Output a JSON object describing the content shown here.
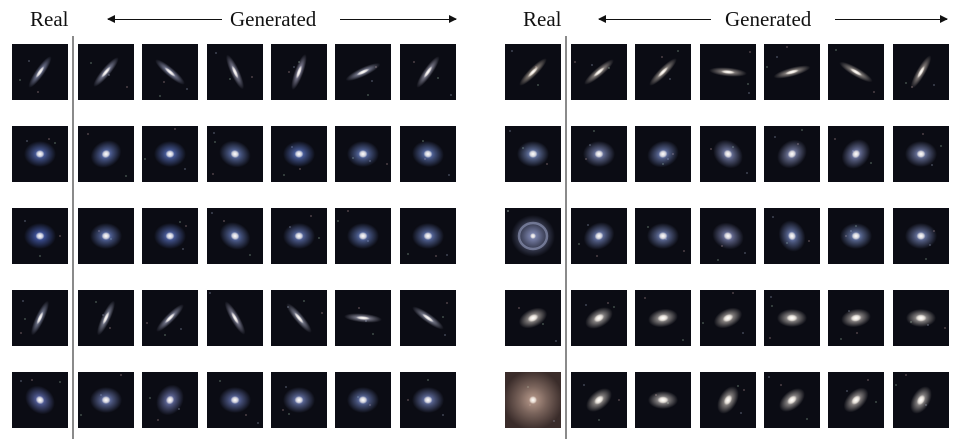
{
  "figure": {
    "real_label": "Real",
    "generated_label": "Generated"
  },
  "panels": [
    {
      "rows": [
        {
          "real": {
            "type": "edge",
            "angle": -55,
            "tint": "#b8c0e8"
          },
          "generated": [
            {
              "type": "edge",
              "angle": -50,
              "tint": "#c8ccec"
            },
            {
              "type": "edge",
              "angle": 40,
              "tint": "#c0c6ea"
            },
            {
              "type": "edge",
              "angle": 65,
              "tint": "#c8c8e4"
            },
            {
              "type": "edge",
              "angle": -70,
              "tint": "#d0ccea"
            },
            {
              "type": "edge",
              "angle": -25,
              "tint": "#c8cce8"
            },
            {
              "type": "edge",
              "angle": -55,
              "tint": "#d2d0e6"
            }
          ]
        },
        {
          "real": {
            "type": "spiral",
            "angle": 0,
            "tint": "#6a86e0"
          },
          "generated": [
            {
              "type": "spiral",
              "angle": -30,
              "tint": "#7a94e6"
            },
            {
              "type": "spiral",
              "angle": 0,
              "tint": "#6a88e4"
            },
            {
              "type": "spiral",
              "angle": 20,
              "tint": "#7e98e2"
            },
            {
              "type": "spiral",
              "angle": 0,
              "tint": "#6c8ae6"
            },
            {
              "type": "spiral",
              "angle": 0,
              "tint": "#7a96e4"
            },
            {
              "type": "spiral",
              "angle": 10,
              "tint": "#7894e2"
            }
          ]
        },
        {
          "real": {
            "type": "spiral",
            "angle": 0,
            "tint": "#5a78e0"
          },
          "generated": [
            {
              "type": "spiral",
              "angle": 0,
              "tint": "#7a94e4"
            },
            {
              "type": "spiral",
              "angle": 0,
              "tint": "#6a86e2"
            },
            {
              "type": "spiral",
              "angle": 30,
              "tint": "#7c96e2"
            },
            {
              "type": "spiral",
              "angle": 0,
              "tint": "#7a92e0"
            },
            {
              "type": "spiral",
              "angle": 0,
              "tint": "#7a96e4"
            },
            {
              "type": "spiral",
              "angle": 0,
              "tint": "#7e98e4"
            }
          ]
        },
        {
          "real": {
            "type": "edge",
            "angle": -65,
            "tint": "#b8c0e0"
          },
          "generated": [
            {
              "type": "edge",
              "angle": -65,
              "tint": "#c8cce6"
            },
            {
              "type": "edge",
              "angle": -45,
              "tint": "#c4c8e6"
            },
            {
              "type": "edge",
              "angle": 60,
              "tint": "#c8c8e4"
            },
            {
              "type": "edge",
              "angle": 50,
              "tint": "#c8cce4"
            },
            {
              "type": "edge",
              "angle": 5,
              "tint": "#d0d0e6"
            },
            {
              "type": "edge",
              "angle": 35,
              "tint": "#c8cce4"
            }
          ]
        },
        {
          "real": {
            "type": "spiral",
            "angle": 40,
            "tint": "#7a8ae0"
          },
          "generated": [
            {
              "type": "spiral",
              "angle": 0,
              "tint": "#8a9ce2"
            },
            {
              "type": "spiral",
              "angle": -60,
              "tint": "#8a96dc"
            },
            {
              "type": "spiral",
              "angle": 0,
              "tint": "#8294e0"
            },
            {
              "type": "spiral",
              "angle": 0,
              "tint": "#8a9ce2"
            },
            {
              "type": "spiral",
              "angle": 0,
              "tint": "#8298e0"
            },
            {
              "type": "spiral",
              "angle": 0,
              "tint": "#8a9ce0"
            }
          ]
        }
      ]
    },
    {
      "rows": [
        {
          "real": {
            "type": "edge",
            "angle": -45,
            "tint": "#e8d8c4"
          },
          "generated": [
            {
              "type": "edge",
              "angle": -40,
              "tint": "#e4d8cc"
            },
            {
              "type": "edge",
              "angle": -45,
              "tint": "#e6dacc"
            },
            {
              "type": "edge",
              "angle": 5,
              "tint": "#e2d6cc"
            },
            {
              "type": "edge",
              "angle": -15,
              "tint": "#e8dcd0"
            },
            {
              "type": "edge",
              "angle": 30,
              "tint": "#e2d8cc"
            },
            {
              "type": "edge",
              "angle": -60,
              "tint": "#e6d8cc"
            }
          ]
        },
        {
          "real": {
            "type": "spiral",
            "angle": 0,
            "tint": "#90a8e8"
          },
          "generated": [
            {
              "type": "spiral",
              "angle": 0,
              "tint": "#9aa8e2"
            },
            {
              "type": "spiral",
              "angle": -20,
              "tint": "#8aa0e4"
            },
            {
              "type": "spiral",
              "angle": 40,
              "tint": "#9ca8e0"
            },
            {
              "type": "spiral",
              "angle": -40,
              "tint": "#a2acdf"
            },
            {
              "type": "spiral",
              "angle": -50,
              "tint": "#9ca8e2"
            },
            {
              "type": "spiral",
              "angle": 0,
              "tint": "#98a6e0"
            }
          ]
        },
        {
          "real": {
            "type": "ring",
            "angle": 0,
            "tint": "#9aa4d6"
          },
          "generated": [
            {
              "type": "spiral",
              "angle": -30,
              "tint": "#8ea2e4"
            },
            {
              "type": "spiral",
              "angle": 0,
              "tint": "#8ea2e2"
            },
            {
              "type": "spiral",
              "angle": 20,
              "tint": "#9ca4dc"
            },
            {
              "type": "spiral",
              "angle": 70,
              "tint": "#8aa0e4"
            },
            {
              "type": "spiral",
              "angle": 0,
              "tint": "#8ea6e6"
            },
            {
              "type": "spiral",
              "angle": 0,
              "tint": "#92a4e2"
            }
          ]
        },
        {
          "real": {
            "type": "elliptical",
            "angle": -25,
            "tint": "#f0e6dc"
          },
          "generated": [
            {
              "type": "elliptical",
              "angle": -30,
              "tint": "#f0e8e0"
            },
            {
              "type": "elliptical",
              "angle": -10,
              "tint": "#f2eae2"
            },
            {
              "type": "elliptical",
              "angle": -25,
              "tint": "#f0e6dc"
            },
            {
              "type": "elliptical",
              "angle": 0,
              "tint": "#f2eae2"
            },
            {
              "type": "elliptical",
              "angle": -10,
              "tint": "#f0e6de"
            },
            {
              "type": "elliptical",
              "angle": 0,
              "tint": "#f2eae2"
            }
          ]
        },
        {
          "real": {
            "type": "bright",
            "angle": 0,
            "tint": "#c8a898"
          },
          "generated": [
            {
              "type": "elliptical",
              "angle": -40,
              "tint": "#f0e6dc"
            },
            {
              "type": "elliptical",
              "angle": 0,
              "tint": "#f2eae4"
            },
            {
              "type": "elliptical",
              "angle": -60,
              "tint": "#f0e6dc"
            },
            {
              "type": "elliptical",
              "angle": -40,
              "tint": "#f2eae2"
            },
            {
              "type": "elliptical",
              "angle": -45,
              "tint": "#f0e6de"
            },
            {
              "type": "elliptical",
              "angle": -60,
              "tint": "#f0e8e0"
            }
          ]
        }
      ]
    }
  ]
}
